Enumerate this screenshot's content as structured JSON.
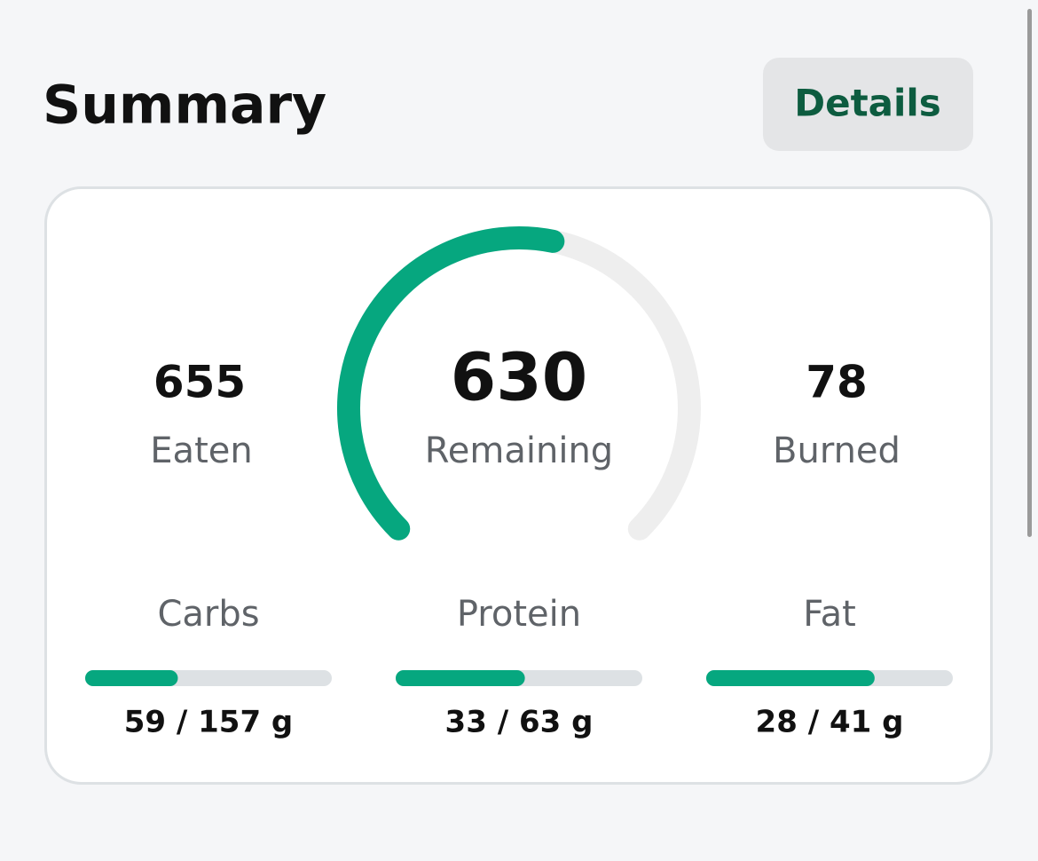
{
  "header": {
    "title": "Summary",
    "button": "Details"
  },
  "summary": {
    "eaten": {
      "value": 655,
      "label": "Eaten"
    },
    "remaining": {
      "value": 630,
      "label": "Remaining"
    },
    "burned": {
      "value": 78,
      "label": "Burned"
    }
  },
  "macros": [
    {
      "name": "Carbs",
      "value": 59,
      "goal": 157,
      "label": "59 / 157 g"
    },
    {
      "name": "Protein",
      "value": 33,
      "goal": 63,
      "label": "33 / 63 g"
    },
    {
      "name": "Fat",
      "value": 28,
      "goal": 41,
      "label": "28 / 41 g"
    }
  ]
}
